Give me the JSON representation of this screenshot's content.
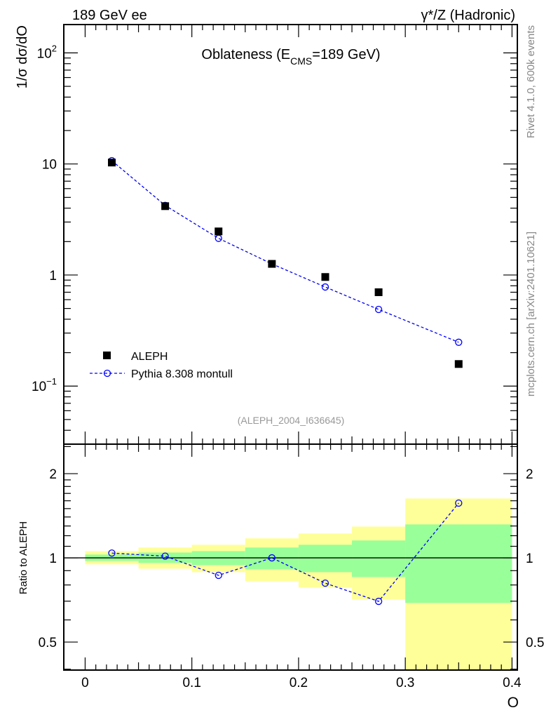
{
  "header": {
    "left": "189 GeV ee",
    "right": "γ*/Z (Hadronic)"
  },
  "side": {
    "rivet": "Rivet 4.1.0,  600k events",
    "mcplots": "mcplots.cern.ch [arXiv:2401.10621]"
  },
  "watermark": "(ALEPH_2004_I636645)",
  "colors": {
    "data": "#000000",
    "mc": "#0000ff",
    "band1": "#99ff99",
    "band2": "#ffff99"
  },
  "chart_data": [
    {
      "type": "scatter",
      "title_main": "Oblateness (E",
      "title_sub": "CMS",
      "title_end": "=189 GeV)",
      "ylabel": "1/σ  dσ/dO",
      "yscale": "log",
      "ylim": [
        0.03,
        180
      ],
      "xlim": [
        -0.02,
        0.405
      ],
      "ytick_labels": [
        {
          "v": 0.1,
          "base": "10",
          "exp": "−1"
        },
        {
          "v": 1,
          "base": "1",
          "exp": ""
        },
        {
          "v": 10,
          "base": "10",
          "exp": ""
        },
        {
          "v": 100,
          "base": "10",
          "exp": "2"
        }
      ],
      "legend": {
        "placement": "middle-left",
        "entries": [
          "ALEPH",
          "Pythia 8.308 montull"
        ]
      },
      "x": [
        0.025,
        0.075,
        0.125,
        0.175,
        0.225,
        0.275,
        0.35
      ],
      "series": [
        {
          "name": "ALEPH",
          "values": [
            10.3,
            4.17,
            2.47,
            1.26,
            0.96,
            0.7,
            0.158
          ]
        },
        {
          "name": "Pythia 8.308 montull",
          "values": [
            10.7,
            4.23,
            2.14,
            1.26,
            0.78,
            0.49,
            0.248
          ]
        }
      ]
    },
    {
      "type": "line",
      "ylabel": "Ratio to ALEPH",
      "xlabel": "O",
      "yscale": "log",
      "ylim": [
        0.397,
        2.55
      ],
      "xlim": [
        -0.02,
        0.405
      ],
      "xtick_labels": [
        "0",
        "0.1",
        "0.2",
        "0.3",
        "0.4"
      ],
      "xticks": [
        0,
        0.1,
        0.2,
        0.3,
        0.4
      ],
      "ytick_labels": [
        "0.5",
        "1",
        "2"
      ],
      "yticks": [
        0.5,
        1,
        2
      ],
      "bin_edges": [
        0,
        0.05,
        0.1,
        0.15,
        0.2,
        0.25,
        0.3,
        0.4
      ],
      "band_1sigma": [
        [
          0.975,
          1.028
        ],
        [
          0.959,
          1.045
        ],
        [
          0.942,
          1.057
        ],
        [
          0.91,
          1.089
        ],
        [
          0.889,
          1.114
        ],
        [
          0.854,
          1.154
        ],
        [
          0.69,
          1.317
        ]
      ],
      "band_2sigma": [
        [
          0.948,
          1.057
        ],
        [
          0.915,
          1.089
        ],
        [
          0.889,
          1.114
        ],
        [
          0.825,
          1.174
        ],
        [
          0.783,
          1.222
        ],
        [
          0.709,
          1.294
        ],
        [
          0.3,
          1.63
        ]
      ],
      "x": [
        0.025,
        0.075,
        0.125,
        0.175,
        0.225,
        0.275,
        0.35
      ],
      "series": [
        {
          "name": "Pythia 8.308 montull / ALEPH",
          "values": [
            1.04,
            1.014,
            0.866,
            1.0,
            0.812,
            0.699,
            1.57
          ]
        }
      ]
    }
  ]
}
